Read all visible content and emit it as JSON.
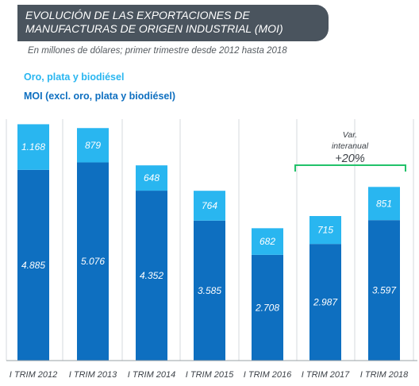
{
  "header": {
    "title_line1": "EVOLUCIÓN DE LAS EXPORTACIONES DE",
    "title_line2": "MANUFACTURAS DE ORIGEN INDUSTRIAL (MOI)",
    "subtitle": "En millones de dólares; primer trimestre desde 2012 hasta 2018"
  },
  "colors": {
    "oro": "#29b6f0",
    "moi": "#0e6fc0",
    "bracket": "#22c26a",
    "title_bg": "#4a545e"
  },
  "chart_data": {
    "type": "bar",
    "stacked": true,
    "categories": [
      "I TRIM 2012",
      "I TRIM 2013",
      "I TRIM 2014",
      "I TRIM 2015",
      "I TRIM 2016",
      "I TRIM 2017",
      "I TRIM 2018"
    ],
    "series": [
      {
        "name": "MOI (excl. oro, plata y biodiésel)",
        "values": [
          4885,
          5076,
          4352,
          3585,
          2708,
          2987,
          3597
        ],
        "labels": [
          "4.885",
          "5.076",
          "4.352",
          "3.585",
          "2.708",
          "2.987",
          "3.597"
        ]
      },
      {
        "name": "Oro, plata y biodiésel",
        "values": [
          1168,
          879,
          648,
          764,
          682,
          715,
          851
        ],
        "labels": [
          "1.168",
          "879",
          "648",
          "764",
          "682",
          "715",
          "851"
        ]
      }
    ],
    "annotation": {
      "line1": "Var.",
      "line2": "interanual",
      "value": "+20%",
      "from_category": "I TRIM 2017",
      "to_category": "I TRIM 2018"
    },
    "ylim": [
      0,
      6053
    ]
  }
}
